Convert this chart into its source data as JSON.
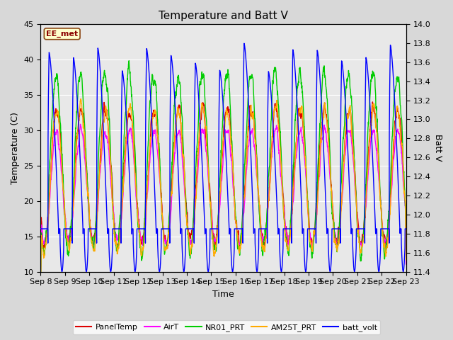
{
  "title": "Temperature and Batt V",
  "xlabel": "Time",
  "ylabel_left": "Temperature (C)",
  "ylabel_right": "Batt V",
  "annotation_text": "EE_met",
  "ylim_left": [
    10,
    45
  ],
  "ylim_right": [
    11.4,
    14.0
  ],
  "x_tick_labels": [
    "Sep 8",
    "Sep 9",
    "Sep 10",
    "Sep 11",
    "Sep 12",
    "Sep 13",
    "Sep 14",
    "Sep 15",
    "Sep 16",
    "Sep 17",
    "Sep 18",
    "Sep 19",
    "Sep 20",
    "Sep 21",
    "Sep 22",
    "Sep 23"
  ],
  "yticks_left": [
    10,
    15,
    20,
    25,
    30,
    35,
    40,
    45
  ],
  "yticks_right": [
    11.4,
    11.6,
    11.8,
    12.0,
    12.2,
    12.4,
    12.6,
    12.8,
    13.0,
    13.2,
    13.4,
    13.6,
    13.8,
    14.0
  ],
  "colors": {
    "PanelTemp": "#dd0000",
    "AirT": "#ff00ff",
    "NR01_PRT": "#00cc00",
    "AM25T_PRT": "#ffaa00",
    "batt_volt": "#0000ff"
  },
  "legend_entries": [
    "PanelTemp",
    "AirT",
    "NR01_PRT",
    "AM25T_PRT",
    "batt_volt"
  ],
  "fig_bg_color": "#d8d8d8",
  "plot_bg_color": "#e8e8e8",
  "n_days": 15,
  "points_per_day": 144
}
